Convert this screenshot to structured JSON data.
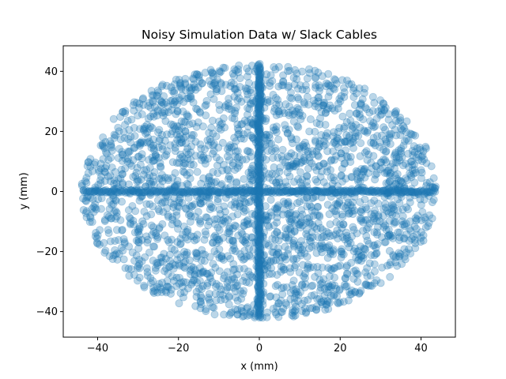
{
  "chart_data": {
    "type": "scatter",
    "title": "Noisy Simulation Data w/ Slack Cables",
    "xlabel": "x (mm)",
    "ylabel": "y (mm)",
    "xlim": [
      -48.5,
      48.5
    ],
    "ylim": [
      -48.5,
      48.5
    ],
    "xticks": [
      -40,
      -20,
      0,
      20,
      40
    ],
    "yticks": [
      -40,
      -20,
      0,
      20,
      40
    ],
    "xtick_labels": [
      "−40",
      "−20",
      "0",
      "20",
      "40"
    ],
    "ytick_labels": [
      "−40",
      "−20",
      "0",
      "20",
      "40"
    ],
    "grid": false,
    "legend": "none",
    "marker_color": "#1f77b4",
    "marker_alpha": 0.3,
    "series": [
      {
        "description": "scattered points filling an ellipse",
        "x_semi_axis": 44,
        "y_semi_axis": 42.5,
        "approx_count": 2500
      },
      {
        "description": "dense horizontal line of points along y = 0",
        "x_range": [
          -43.5,
          43.5
        ],
        "y": 0
      },
      {
        "description": "dense vertical line of points along x = 0",
        "y_range": [
          -42,
          42.5
        ],
        "x": 0
      }
    ]
  }
}
